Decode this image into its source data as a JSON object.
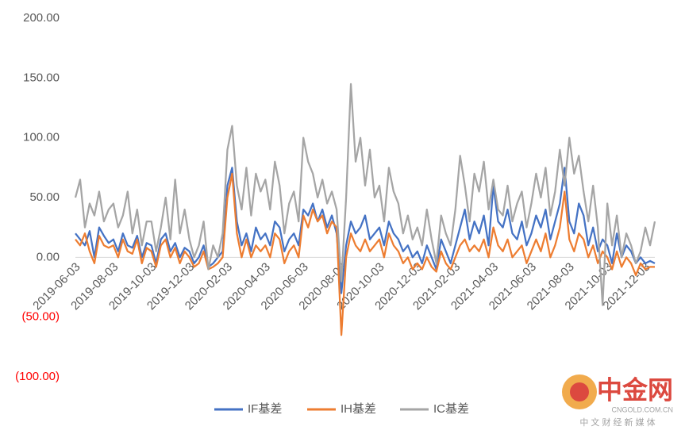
{
  "chart_data": {
    "type": "line",
    "categories": [
      "2019-06-03",
      null,
      null,
      null,
      null,
      null,
      null,
      null,
      "2019-08-03",
      null,
      null,
      null,
      null,
      null,
      null,
      null,
      "2019-10-03",
      null,
      null,
      null,
      null,
      null,
      null,
      null,
      "2019-12-03",
      null,
      null,
      null,
      null,
      null,
      null,
      null,
      "2020-02-03",
      null,
      null,
      null,
      null,
      null,
      null,
      null,
      "2020-04-03",
      null,
      null,
      null,
      null,
      null,
      null,
      null,
      "2020-06-03",
      null,
      null,
      null,
      null,
      null,
      null,
      null,
      "2020-08-03",
      null,
      null,
      null,
      null,
      null,
      null,
      null,
      "2020-10-03",
      null,
      null,
      null,
      null,
      null,
      null,
      null,
      "2020-12-03",
      null,
      null,
      null,
      null,
      null,
      null,
      null,
      "2021-02-03",
      null,
      null,
      null,
      null,
      null,
      null,
      null,
      "2021-04-03",
      null,
      null,
      null,
      null,
      null,
      null,
      null,
      "2021-06-03",
      null,
      null,
      null,
      null,
      null,
      null,
      null,
      "2021-08-03",
      null,
      null,
      null,
      null,
      null,
      null,
      null,
      "2021-10-03",
      null,
      null,
      null,
      null,
      null,
      null,
      null,
      "2021-12-03",
      null,
      null
    ],
    "series": [
      {
        "name": "IF基差",
        "color": "#4472c4",
        "values": [
          20,
          15,
          10,
          22,
          0,
          25,
          18,
          12,
          15,
          5,
          20,
          10,
          8,
          18,
          0,
          12,
          10,
          -5,
          15,
          20,
          5,
          12,
          0,
          8,
          5,
          -5,
          0,
          10,
          -8,
          -5,
          0,
          5,
          60,
          75,
          30,
          10,
          20,
          5,
          25,
          15,
          20,
          10,
          30,
          25,
          5,
          15,
          20,
          10,
          40,
          35,
          45,
          30,
          40,
          25,
          35,
          20,
          -30,
          10,
          30,
          20,
          25,
          35,
          15,
          20,
          25,
          10,
          30,
          20,
          15,
          5,
          10,
          0,
          5,
          -5,
          10,
          0,
          -10,
          15,
          5,
          -5,
          10,
          25,
          40,
          15,
          30,
          20,
          35,
          10,
          60,
          30,
          25,
          40,
          20,
          15,
          30,
          10,
          20,
          35,
          25,
          40,
          15,
          30,
          45,
          75,
          30,
          20,
          45,
          35,
          10,
          25,
          5,
          15,
          10,
          -5,
          20,
          0,
          10,
          5,
          -5,
          0,
          -5,
          -3,
          -5
        ]
      },
      {
        "name": "IH基差",
        "color": "#ed7d31",
        "values": [
          15,
          10,
          20,
          5,
          -5,
          18,
          10,
          8,
          10,
          0,
          15,
          5,
          3,
          15,
          -5,
          8,
          5,
          -8,
          10,
          15,
          0,
          8,
          -5,
          5,
          0,
          -8,
          -5,
          5,
          -10,
          -8,
          -5,
          0,
          50,
          70,
          20,
          0,
          15,
          0,
          10,
          5,
          10,
          0,
          20,
          15,
          -5,
          5,
          10,
          0,
          35,
          25,
          40,
          30,
          35,
          20,
          30,
          25,
          -65,
          0,
          20,
          10,
          5,
          15,
          5,
          10,
          15,
          0,
          20,
          10,
          5,
          -5,
          0,
          -10,
          -5,
          -10,
          0,
          -8,
          -12,
          5,
          -5,
          -10,
          0,
          10,
          15,
          5,
          10,
          5,
          15,
          0,
          25,
          10,
          5,
          15,
          0,
          5,
          10,
          -5,
          5,
          15,
          5,
          20,
          0,
          10,
          25,
          55,
          15,
          5,
          20,
          15,
          0,
          10,
          -5,
          5,
          0,
          -10,
          5,
          -8,
          0,
          -5,
          -15,
          -5,
          -10,
          -8,
          -8
        ]
      },
      {
        "name": "IC基差",
        "color": "#a5a5a5",
        "values": [
          50,
          65,
          25,
          45,
          35,
          55,
          30,
          40,
          45,
          25,
          35,
          55,
          20,
          40,
          10,
          30,
          30,
          5,
          25,
          50,
          15,
          65,
          20,
          40,
          15,
          0,
          10,
          30,
          -10,
          10,
          0,
          20,
          90,
          110,
          60,
          40,
          75,
          35,
          70,
          55,
          65,
          40,
          80,
          60,
          20,
          45,
          55,
          30,
          100,
          80,
          70,
          50,
          65,
          45,
          55,
          40,
          -20,
          50,
          145,
          80,
          100,
          60,
          90,
          50,
          60,
          30,
          75,
          55,
          45,
          20,
          35,
          15,
          25,
          10,
          40,
          15,
          -5,
          35,
          20,
          10,
          40,
          85,
          60,
          30,
          70,
          55,
          80,
          40,
          65,
          40,
          35,
          60,
          30,
          45,
          55,
          25,
          45,
          70,
          50,
          75,
          35,
          55,
          90,
          60,
          100,
          70,
          85,
          55,
          30,
          60,
          25,
          -40,
          45,
          10,
          35,
          0,
          20,
          10,
          -5,
          5,
          25,
          10,
          30
        ]
      }
    ],
    "ylim": [
      -100,
      200
    ],
    "yticks": [
      {
        "value": -100,
        "label": "(100.00)"
      },
      {
        "value": -50,
        "label": "(50.00)"
      },
      {
        "value": 0,
        "label": "0.00"
      },
      {
        "value": 50,
        "label": "50.00"
      },
      {
        "value": 100,
        "label": "100.00"
      },
      {
        "value": 150,
        "label": "150.00"
      },
      {
        "value": 200,
        "label": "200.00"
      }
    ],
    "negative_tick_color": "#ff0000",
    "legend": "bottom"
  },
  "watermark": {
    "logo": "中金网",
    "url": "CNGOLD.COM.CN",
    "tagline": "中 文 财 经 新 媒 体"
  }
}
